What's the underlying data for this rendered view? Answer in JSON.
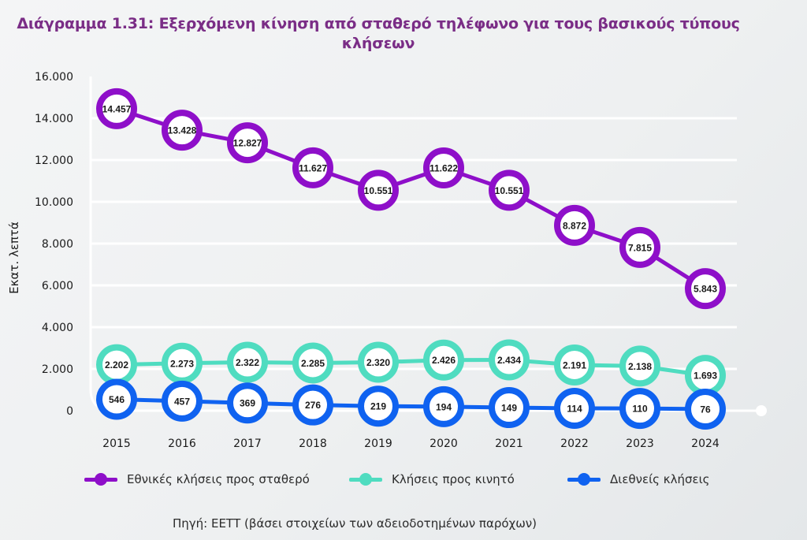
{
  "title_line1": "Διάγραμμα 1.31: Εξερχόμενη κίνηση από σταθερό τηλέφωνο για τους βασικούς τύπους",
  "title_line2": "κλήσεων",
  "source": "Πηγή: ΕΕΤΤ (βάσει στοιχείων των αδειοδοτημένων παρόχων)",
  "chart_data": {
    "type": "line",
    "title": "Διάγραμμα 1.31: Εξερχόμενη κίνηση από σταθερό τηλέφωνο για τους βασικούς τύπους κλήσεων",
    "xlabel": "",
    "ylabel": "Εκατ. λεπτά",
    "ylim": [
      0,
      16000
    ],
    "yticks": [
      0,
      2000,
      4000,
      6000,
      8000,
      10000,
      12000,
      14000,
      16000
    ],
    "ytick_labels": [
      "0",
      "2.000",
      "4.000",
      "6.000",
      "8.000",
      "10.000",
      "12.000",
      "14.000",
      "16.000"
    ],
    "grid": true,
    "legend_position": "bottom",
    "categories": [
      "2015",
      "2016",
      "2017",
      "2018",
      "2019",
      "2020",
      "2021",
      "2022",
      "2023",
      "2024"
    ],
    "series": [
      {
        "name": "Εθνικές κλήσεις προς σταθερό",
        "color": "#8e0fc9",
        "values": [
          14457,
          13428,
          12827,
          11627,
          10551,
          11622,
          10551,
          8872,
          7815,
          5843
        ],
        "labels": [
          "14.457",
          "13.428",
          "12.827",
          "11.627",
          "10.551",
          "11.622",
          "10.551",
          "8.872",
          "7.815",
          "5.843"
        ]
      },
      {
        "name": "Κλήσεις προς κινητό",
        "color": "#4fdcc0",
        "values": [
          2202,
          2273,
          2322,
          2285,
          2320,
          2426,
          2434,
          2191,
          2138,
          1693
        ],
        "labels": [
          "2.202",
          "2.273",
          "2.322",
          "2.285",
          "2.320",
          "2.426",
          "2.434",
          "2.191",
          "2.138",
          "1.693"
        ]
      },
      {
        "name": "Διεθνείς κλήσεις",
        "color": "#0f62f0",
        "values": [
          546,
          457,
          369,
          276,
          219,
          194,
          149,
          114,
          110,
          76
        ],
        "labels": [
          "546",
          "457",
          "369",
          "276",
          "219",
          "194",
          "149",
          "114",
          "110",
          "76"
        ]
      }
    ]
  }
}
